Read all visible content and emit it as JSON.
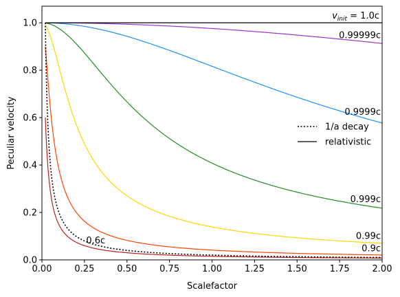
{
  "chart_data": {
    "type": "line",
    "xlabel": "Scalefactor",
    "ylabel": "Peculiar velocity",
    "xlim": [
      0.0,
      2.0
    ],
    "ylim": [
      0.0,
      1.07
    ],
    "x_ticks": [
      0.0,
      0.25,
      0.5,
      0.75,
      1.0,
      1.25,
      1.5,
      1.75,
      2.0
    ],
    "x_tick_labels": [
      "0.00",
      "0.25",
      "0.50",
      "0.75",
      "1.00",
      "1.25",
      "1.50",
      "1.75",
      "2.00"
    ],
    "y_ticks": [
      0.0,
      0.2,
      0.4,
      0.6,
      0.8,
      1.0
    ],
    "y_tick_labels": [
      "0.0",
      "0.2",
      "0.4",
      "0.6",
      "0.8",
      "1.0"
    ],
    "grid": false,
    "legend_position": "center-right",
    "legend": [
      {
        "label": "1/a decay",
        "style": "dotted",
        "color": "#000000"
      },
      {
        "label": "relativistic",
        "style": "solid",
        "color": "#000000"
      }
    ],
    "a_init": 0.02,
    "series": [
      {
        "name": "0.6c",
        "beta": 0.6,
        "color": "#b22222"
      },
      {
        "name": "0.9c",
        "beta": 0.9,
        "color": "#ff4500"
      },
      {
        "name": "0.99c",
        "beta": 0.99,
        "color": "#ffd700"
      },
      {
        "name": "0.999c",
        "beta": 0.999,
        "color": "#228b22"
      },
      {
        "name": "0.9999c",
        "beta": 0.9999,
        "color": "#1e90ff"
      },
      {
        "name": "0.99999c",
        "beta": 0.99999,
        "color": "#9932cc"
      },
      {
        "name": "1.0c",
        "beta": 1.0,
        "color": "#000000"
      }
    ],
    "decay_series": {
      "name": "1/a decay",
      "color": "#000000"
    },
    "annotations": {
      "top_label_prefix": "v",
      "top_label_sub": "init",
      "top_label_suffix": " = 1.0c"
    }
  }
}
